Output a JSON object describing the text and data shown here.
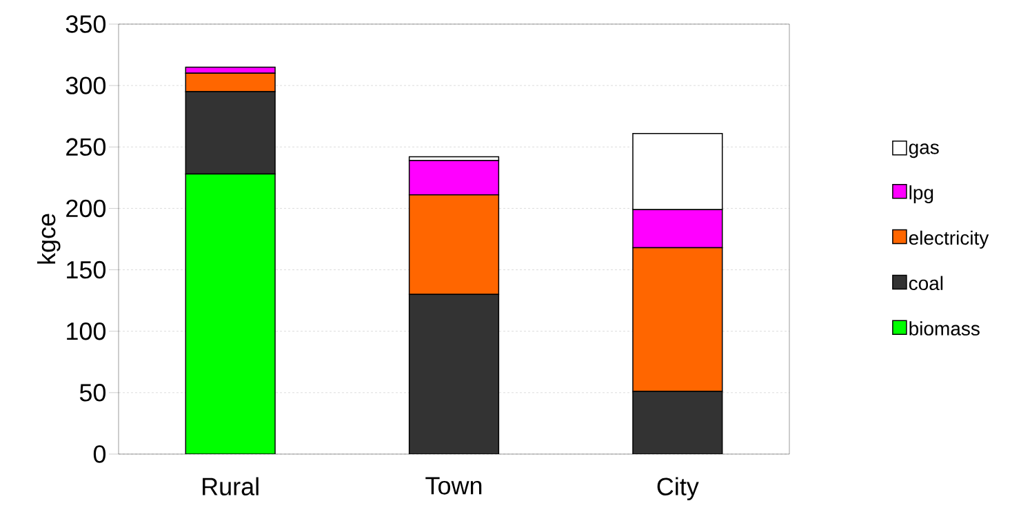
{
  "chart_data": {
    "type": "bar",
    "stacked": true,
    "ylabel": "kgce",
    "categories": [
      "Rural",
      "Town",
      "City"
    ],
    "series": [
      {
        "name": "biomass",
        "color": "#00ff00",
        "values": [
          228,
          0,
          0
        ]
      },
      {
        "name": "coal",
        "color": "#333333",
        "values": [
          67,
          130,
          51
        ]
      },
      {
        "name": "electricity",
        "color": "#ff6600",
        "values": [
          15,
          81,
          117
        ]
      },
      {
        "name": "lpg",
        "color": "#ff00ff",
        "values": [
          5,
          28,
          31
        ]
      },
      {
        "name": "gas",
        "color": "#ffffff",
        "values": [
          0,
          3,
          62
        ]
      }
    ],
    "ylim": [
      0,
      350
    ],
    "yticks": [
      0,
      50,
      100,
      150,
      200,
      250,
      300,
      350
    ],
    "grid": "y",
    "legend": "right"
  }
}
